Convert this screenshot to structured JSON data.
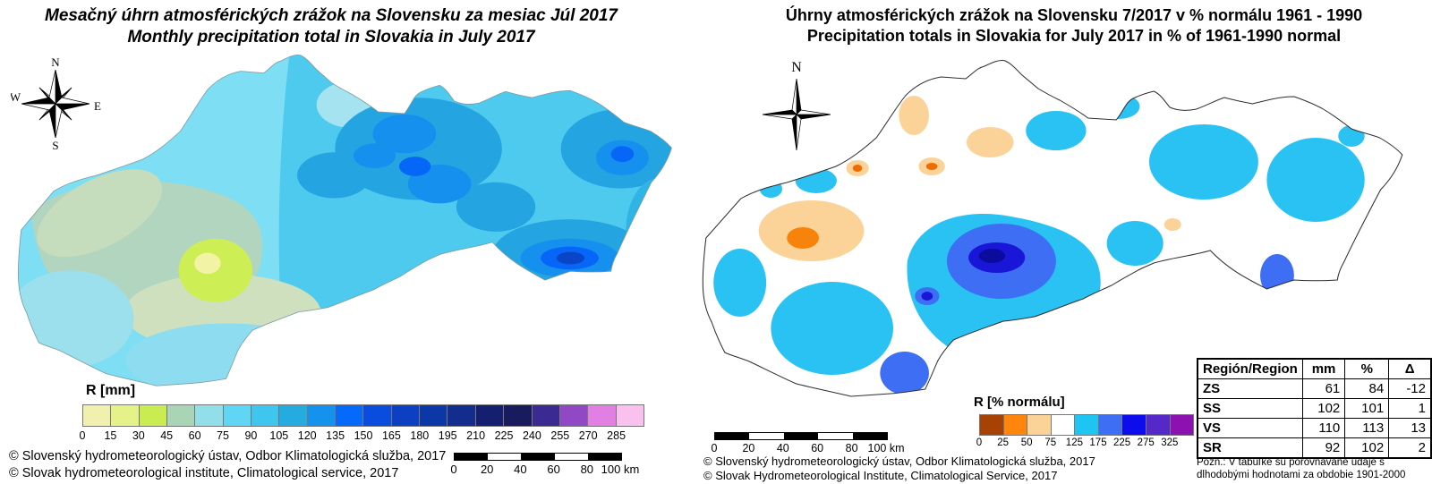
{
  "left_map": {
    "title_sk": "Mesačný úhrn atmosférických zrážok na Slovensku za mesiac Júl 2017",
    "title_en": "Monthly precipitation total in Slovakia in July 2017",
    "compass": {
      "n": "N",
      "s": "S",
      "e": "E",
      "w": "W"
    },
    "legend": {
      "label": "R [mm]",
      "tick_labels": [
        "0",
        "15",
        "30",
        "45",
        "60",
        "75",
        "90",
        "105",
        "120",
        "135",
        "150",
        "165",
        "180",
        "195",
        "210",
        "225",
        "240",
        "255",
        "270",
        "285"
      ],
      "colors": [
        "#f1f0ae",
        "#e5f289",
        "#c9ec50",
        "#a9d4b6",
        "#93dfe9",
        "#60d6f4",
        "#3fc6ee",
        "#24abdf",
        "#1592ee",
        "#0569fa",
        "#0a4cdd",
        "#0d3fc2",
        "#0c37a6",
        "#122d8d",
        "#151f70",
        "#181b5e",
        "#3b2a91",
        "#9148c4",
        "#e27fe2",
        "#fbc1ee"
      ]
    },
    "scalebar": {
      "labels": [
        "0",
        "20",
        "40",
        "60",
        "80",
        "100"
      ],
      "unit": "km"
    },
    "copyright_sk": "© Slovenský hydrometeorologický ústav, Odbor Klimatologická služba, 2017",
    "copyright_en": "© Slovak hydrometeorological institute, Climatological service, 2017"
  },
  "right_map": {
    "title_sk": "Úhrny atmosférických zrážok na Slovensku 7/2017 v % normálu 1961 - 1990",
    "title_en": "Precipitation totals in Slovakia for July 2017 in % of 1961-1990 normal",
    "compass": {
      "n": "N"
    },
    "legend": {
      "label": "R [% normálu]",
      "tick_labels": [
        "0",
        "25",
        "50",
        "75",
        "125",
        "175",
        "225",
        "275",
        "325"
      ],
      "colors": [
        "#a84104",
        "#ff860c",
        "#fbd398",
        "#ffffff",
        "#1ec4f2",
        "#3e6ef4",
        "#0d0cec",
        "#5529c8",
        "#8d10b0"
      ]
    },
    "scalebar": {
      "labels": [
        "0",
        "20",
        "40",
        "60",
        "80",
        "100"
      ],
      "unit": "km"
    },
    "copyright_sk": "© Slovenský hydrometeorologický ústav, Odbor Klimatologická služba, 2017",
    "copyright_en": "© Slovak Hydrometeorological Institute, Climatological Service, 2017",
    "table": {
      "headers": [
        "Región/Region",
        "mm",
        "%",
        "Δ"
      ],
      "rows": [
        [
          "ZS",
          "61",
          "84",
          "-12"
        ],
        [
          "SS",
          "102",
          "101",
          "1"
        ],
        [
          "VS",
          "110",
          "113",
          "13"
        ],
        [
          "SR",
          "92",
          "102",
          "2"
        ]
      ]
    },
    "note": "Pozn.: V tabuľke sú porovnávané údaje s dlhodobými hodnotami za obdobie 1901-2000"
  }
}
